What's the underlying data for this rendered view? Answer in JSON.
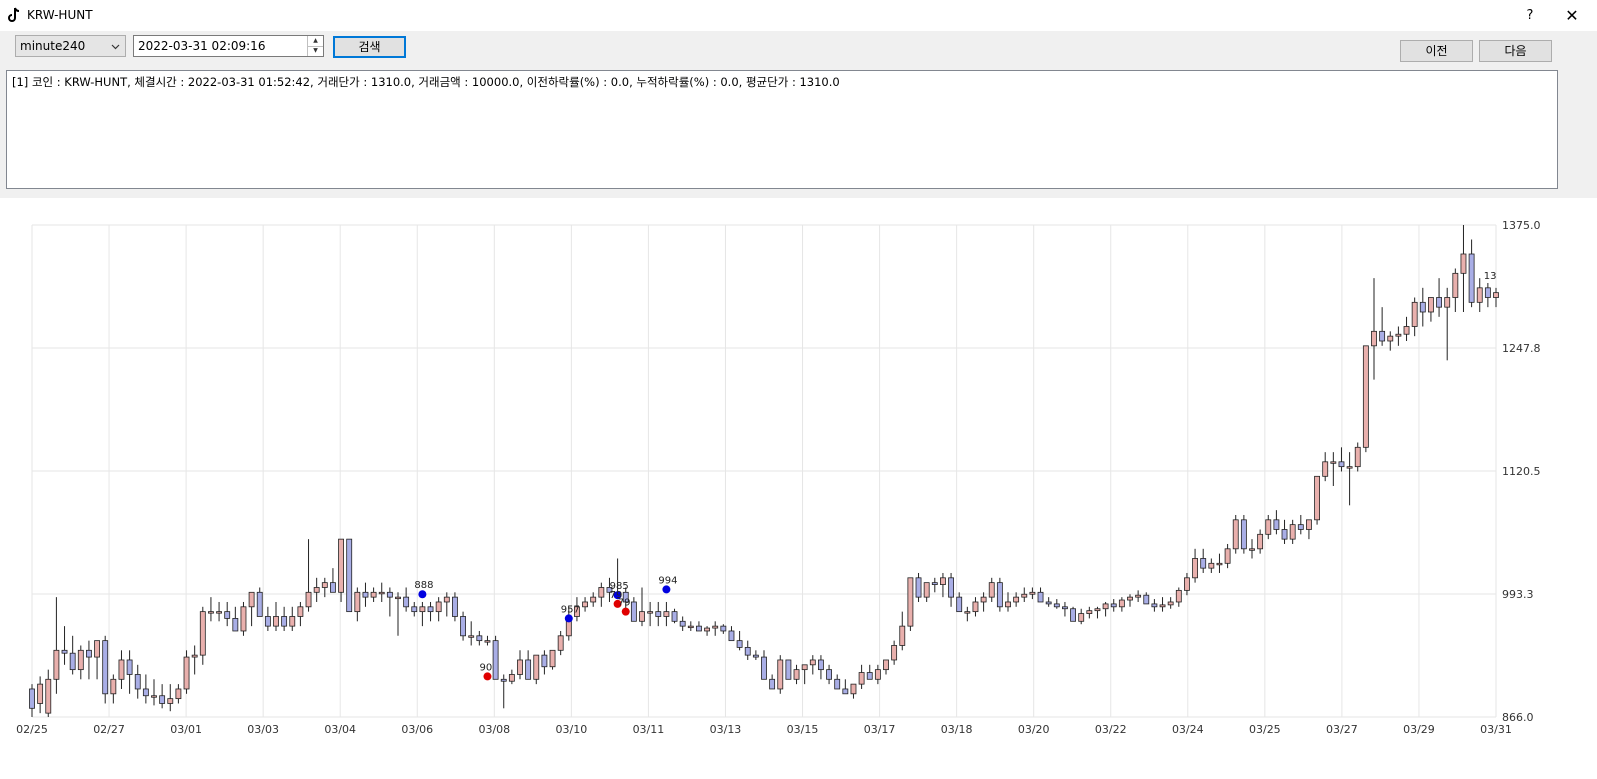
{
  "window": {
    "title": "KRW-HUNT",
    "help": "?",
    "close": "✕"
  },
  "toolbar": {
    "interval_value": "minute240",
    "datetime_value": "2022-03-31 02:09:16",
    "search_label": "검색",
    "prev_label": "이전",
    "next_label": "다음"
  },
  "log": {
    "lines": [
      "[1] 코인 : KRW-HUNT, 체결시간 : 2022-03-31 01:52:42, 거래단가 : 1310.0, 거래금액 : 10000.0, 이전하락률(%) : 0.0, 누적하락률(%) : 0.0,  평균단가 : 1310.0"
    ]
  },
  "colors": {
    "up": "#e9b0ad",
    "down": "#a9aee6",
    "buy": "#e00000",
    "sell": "#0000e0",
    "grid": "#e6e6e6"
  },
  "chart_data": {
    "type": "candlestick",
    "ylim": [
      866.0,
      1375.0
    ],
    "y_ticks": [
      "1375.0",
      "1247.8",
      "1120.5",
      "993.3",
      "866.0"
    ],
    "x_ticks": [
      "02/25",
      "02/27",
      "03/01",
      "03/03",
      "03/04",
      "03/06",
      "03/08",
      "03/10",
      "03/11",
      "03/13",
      "03/15",
      "03/17",
      "03/18",
      "03/20",
      "03/22",
      "03/24",
      "03/25",
      "03/27",
      "03/29",
      "03/31"
    ],
    "candles_ohlc": [
      [
        895,
        900,
        866,
        875
      ],
      [
        880,
        908,
        870,
        900
      ],
      [
        870,
        915,
        866,
        905
      ],
      [
        905,
        990,
        890,
        935
      ],
      [
        935,
        960,
        920,
        932
      ],
      [
        932,
        950,
        910,
        915
      ],
      [
        915,
        940,
        905,
        935
      ],
      [
        935,
        945,
        905,
        928
      ],
      [
        928,
        945,
        905,
        945
      ],
      [
        945,
        950,
        880,
        890
      ],
      [
        890,
        910,
        880,
        905
      ],
      [
        905,
        935,
        895,
        925
      ],
      [
        925,
        935,
        890,
        910
      ],
      [
        910,
        920,
        885,
        895
      ],
      [
        895,
        910,
        880,
        888
      ],
      [
        888,
        905,
        878,
        888
      ],
      [
        888,
        900,
        875,
        880
      ],
      [
        880,
        900,
        872,
        885
      ],
      [
        885,
        900,
        880,
        895
      ],
      [
        895,
        935,
        890,
        928
      ],
      [
        928,
        940,
        910,
        930
      ],
      [
        930,
        980,
        920,
        975
      ],
      [
        975,
        990,
        965,
        975
      ],
      [
        975,
        985,
        965,
        975
      ],
      [
        975,
        985,
        960,
        968
      ],
      [
        968,
        980,
        955,
        955
      ],
      [
        955,
        985,
        950,
        980
      ],
      [
        980,
        995,
        960,
        995
      ],
      [
        995,
        1000,
        985,
        970
      ],
      [
        970,
        980,
        955,
        960
      ],
      [
        960,
        985,
        955,
        970
      ],
      [
        970,
        980,
        955,
        960
      ],
      [
        960,
        980,
        955,
        970
      ],
      [
        970,
        985,
        960,
        980
      ],
      [
        980,
        1050,
        975,
        995
      ],
      [
        995,
        1010,
        985,
        1000
      ],
      [
        1000,
        1010,
        990,
        1005
      ],
      [
        1005,
        1020,
        995,
        995
      ],
      [
        995,
        1050,
        985,
        1050
      ],
      [
        1050,
        1050,
        975,
        975
      ],
      [
        975,
        1000,
        965,
        995
      ],
      [
        995,
        1005,
        980,
        990
      ],
      [
        990,
        1000,
        985,
        995
      ],
      [
        995,
        1005,
        985,
        995
      ],
      [
        995,
        1000,
        970,
        990
      ],
      [
        990,
        995,
        950,
        990
      ],
      [
        990,
        1000,
        975,
        980
      ],
      [
        980,
        985,
        970,
        975
      ],
      [
        975,
        985,
        960,
        980
      ],
      [
        980,
        985,
        965,
        975
      ],
      [
        975,
        990,
        965,
        985
      ],
      [
        985,
        995,
        970,
        990
      ],
      [
        990,
        995,
        965,
        970
      ],
      [
        970,
        975,
        945,
        950
      ],
      [
        950,
        965,
        940,
        950
      ],
      [
        950,
        955,
        940,
        945
      ],
      [
        945,
        950,
        940,
        945
      ],
      [
        945,
        950,
        930,
        905
      ],
      [
        905,
        910,
        875,
        903
      ],
      [
        903,
        915,
        900,
        910
      ],
      [
        910,
        935,
        905,
        925
      ],
      [
        925,
        935,
        905,
        905
      ],
      [
        905,
        930,
        900,
        930
      ],
      [
        930,
        935,
        910,
        918
      ],
      [
        918,
        935,
        915,
        935
      ],
      [
        935,
        955,
        930,
        950
      ],
      [
        950,
        980,
        945,
        970
      ],
      [
        970,
        990,
        965,
        980
      ],
      [
        980,
        990,
        975,
        985
      ],
      [
        985,
        995,
        980,
        990
      ],
      [
        990,
        1005,
        980,
        1000
      ],
      [
        1000,
        1010,
        985,
        995
      ],
      [
        995,
        1030,
        990,
        995
      ],
      [
        995,
        1000,
        975,
        985
      ],
      [
        985,
        990,
        970,
        965
      ],
      [
        965,
        1000,
        960,
        975
      ],
      [
        975,
        985,
        960,
        975
      ],
      [
        975,
        985,
        960,
        970
      ],
      [
        970,
        985,
        960,
        975
      ],
      [
        975,
        978,
        963,
        965
      ],
      [
        965,
        970,
        955,
        960
      ],
      [
        960,
        965,
        955,
        960
      ],
      [
        960,
        965,
        955,
        955
      ],
      [
        955,
        960,
        950,
        958
      ],
      [
        958,
        965,
        950,
        960
      ],
      [
        960,
        962,
        952,
        955
      ],
      [
        955,
        960,
        945,
        945
      ],
      [
        945,
        955,
        935,
        938
      ],
      [
        938,
        945,
        925,
        930
      ],
      [
        930,
        935,
        925,
        928
      ],
      [
        928,
        935,
        905,
        905
      ],
      [
        905,
        910,
        895,
        895
      ],
      [
        895,
        930,
        890,
        925
      ],
      [
        925,
        925,
        905,
        905
      ],
      [
        905,
        920,
        900,
        915
      ],
      [
        915,
        920,
        900,
        920
      ],
      [
        920,
        930,
        910,
        925
      ],
      [
        925,
        930,
        905,
        915
      ],
      [
        915,
        920,
        900,
        905
      ],
      [
        905,
        910,
        895,
        895
      ],
      [
        895,
        905,
        890,
        890
      ],
      [
        890,
        895,
        885,
        900
      ],
      [
        900,
        920,
        895,
        912
      ],
      [
        912,
        920,
        905,
        905
      ],
      [
        905,
        920,
        900,
        915
      ],
      [
        915,
        925,
        910,
        925
      ],
      [
        925,
        945,
        920,
        940
      ],
      [
        940,
        975,
        935,
        960
      ],
      [
        960,
        1010,
        955,
        1010
      ],
      [
        1010,
        1015,
        985,
        990
      ],
      [
        990,
        1005,
        985,
        1005
      ],
      [
        1005,
        1010,
        995,
        1003
      ],
      [
        1003,
        1015,
        990,
        1010
      ],
      [
        1010,
        1015,
        980,
        990
      ],
      [
        990,
        995,
        975,
        975
      ],
      [
        975,
        980,
        965,
        975
      ],
      [
        975,
        990,
        970,
        985
      ],
      [
        985,
        995,
        975,
        990
      ],
      [
        990,
        1010,
        985,
        1005
      ],
      [
        1005,
        1010,
        975,
        980
      ],
      [
        980,
        995,
        975,
        985
      ],
      [
        985,
        995,
        980,
        990
      ],
      [
        990,
        1000,
        985,
        993
      ],
      [
        993,
        1000,
        988,
        995
      ],
      [
        995,
        1000,
        985,
        985
      ],
      [
        985,
        990,
        980,
        983
      ],
      [
        983,
        988,
        978,
        980
      ],
      [
        980,
        985,
        970,
        978
      ],
      [
        978,
        980,
        965,
        965
      ],
      [
        965,
        978,
        962,
        973
      ],
      [
        973,
        980,
        968,
        976
      ],
      [
        976,
        980,
        968,
        978
      ],
      [
        978,
        985,
        970,
        983
      ],
      [
        983,
        988,
        975,
        980
      ],
      [
        980,
        990,
        975,
        987
      ],
      [
        987,
        993,
        980,
        990
      ],
      [
        990,
        997,
        985,
        992
      ],
      [
        992,
        995,
        985,
        983
      ],
      [
        983,
        988,
        975,
        980
      ],
      [
        980,
        990,
        975,
        982
      ],
      [
        982,
        990,
        978,
        985
      ],
      [
        985,
        1000,
        980,
        997
      ],
      [
        997,
        1015,
        992,
        1010
      ],
      [
        1010,
        1040,
        1005,
        1030
      ],
      [
        1030,
        1040,
        1015,
        1020
      ],
      [
        1020,
        1030,
        1015,
        1025
      ],
      [
        1025,
        1035,
        1015,
        1025
      ],
      [
        1025,
        1045,
        1020,
        1040
      ],
      [
        1040,
        1075,
        1035,
        1070
      ],
      [
        1070,
        1075,
        1035,
        1040
      ],
      [
        1040,
        1050,
        1030,
        1040
      ],
      [
        1040,
        1060,
        1035,
        1055
      ],
      [
        1055,
        1075,
        1050,
        1070
      ],
      [
        1070,
        1080,
        1055,
        1060
      ],
      [
        1060,
        1070,
        1045,
        1050
      ],
      [
        1050,
        1070,
        1045,
        1065
      ],
      [
        1065,
        1075,
        1055,
        1060
      ],
      [
        1060,
        1070,
        1050,
        1070
      ],
      [
        1070,
        1115,
        1065,
        1115
      ],
      [
        1115,
        1140,
        1110,
        1130
      ],
      [
        1130,
        1140,
        1105,
        1130
      ],
      [
        1130,
        1145,
        1120,
        1125
      ],
      [
        1125,
        1140,
        1085,
        1125
      ],
      [
        1125,
        1150,
        1120,
        1145
      ],
      [
        1145,
        1250,
        1140,
        1250
      ],
      [
        1250,
        1320,
        1215,
        1265
      ],
      [
        1265,
        1290,
        1250,
        1255
      ],
      [
        1255,
        1265,
        1245,
        1260
      ],
      [
        1260,
        1270,
        1250,
        1262
      ],
      [
        1262,
        1280,
        1255,
        1270
      ],
      [
        1270,
        1300,
        1260,
        1295
      ],
      [
        1295,
        1310,
        1270,
        1285
      ],
      [
        1285,
        1300,
        1275,
        1300
      ],
      [
        1300,
        1320,
        1280,
        1290
      ],
      [
        1290,
        1310,
        1235,
        1300
      ],
      [
        1300,
        1330,
        1285,
        1325
      ],
      [
        1325,
        1375,
        1285,
        1345
      ],
      [
        1345,
        1360,
        1290,
        1295
      ],
      [
        1295,
        1320,
        1285,
        1310
      ],
      [
        1310,
        1315,
        1290,
        1300
      ],
      [
        1300,
        1310,
        1290,
        1305
      ]
    ],
    "markers": [
      {
        "label": "888",
        "type": "sell",
        "candle": 48,
        "y": 993
      },
      {
        "label": "957",
        "type": "sell",
        "candle": 66,
        "y": 968
      },
      {
        "label": "985",
        "type": "sell",
        "candle": 72,
        "y": 992
      },
      {
        "label": "79",
        "type": "buy",
        "candle": 72,
        "y": 983
      },
      {
        "label": "79",
        "type": "buy",
        "candle": 73,
        "y": 975
      },
      {
        "label": "994",
        "type": "sell",
        "candle": 78,
        "y": 998
      },
      {
        "label": "90",
        "type": "buy",
        "candle": 56,
        "y": 908
      }
    ],
    "last_label": "13"
  }
}
